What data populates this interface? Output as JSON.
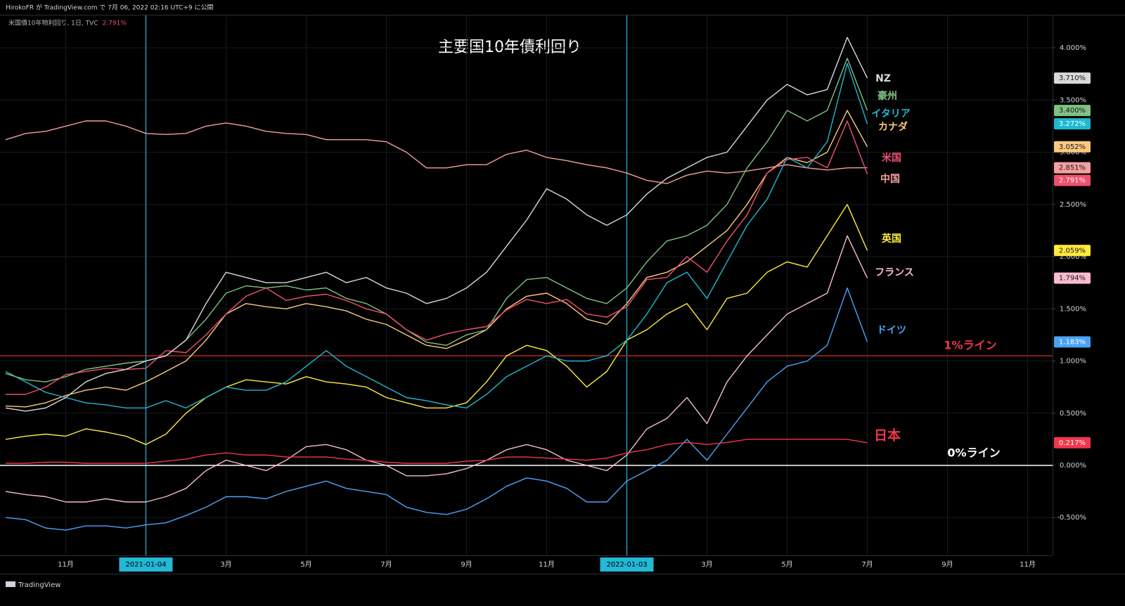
{
  "header": "HirokoFR が TradingView.com で 7月 06, 2022 02:16 UTC+9 に公開",
  "symbol": "米国債10年物利回り, 1日, TVC",
  "brand": "TradingView",
  "chart_data": {
    "type": "line",
    "title": "主要国10年債利回り",
    "categories": [
      null,
      null,
      null,
      "11月",
      null,
      null,
      null,
      "2021-01-04",
      null,
      null,
      null,
      "3月",
      null,
      null,
      null,
      "5月",
      null,
      null,
      null,
      "7月",
      null,
      null,
      null,
      "9月",
      null,
      null,
      null,
      "11月",
      null,
      null,
      null,
      "2022-01-03",
      null,
      null,
      null,
      "3月",
      null,
      null,
      null,
      "5月",
      null,
      null,
      null,
      "7月",
      null,
      null,
      null,
      "9月",
      null,
      null,
      null,
      "11月",
      null
    ],
    "x_highlights": [
      "2021-01-04",
      "2022-01-03"
    ],
    "highlight_color": "#22b8d6",
    "ylim": [
      -0.862,
      4.31
    ],
    "yticks": [
      {
        "value": -0.5,
        "label": "-0.500%"
      },
      {
        "value": 0,
        "label": "0.000%"
      },
      {
        "value": 0.5,
        "label": "0.500%"
      },
      {
        "value": 1,
        "label": "1.000%"
      },
      {
        "value": 1.5,
        "label": "1.500%"
      },
      {
        "value": 2,
        "label": "2.000%"
      },
      {
        "value": 2.5,
        "label": "2.500%"
      },
      {
        "value": 3,
        "label": "3.000%"
      },
      {
        "value": 3.5,
        "label": "3.500%"
      },
      {
        "value": 4,
        "label": "4.000%"
      }
    ],
    "grid": true,
    "hlines": [
      {
        "value": 1.05,
        "label": "1%ライン",
        "color": "#b3261e",
        "label_color": "#f2364c"
      },
      {
        "value": 0,
        "label": "0%ライン",
        "color": "#ffffff",
        "label_color": "#ffffff"
      }
    ],
    "series": [
      {
        "name": "中国",
        "color": "#f4a09c",
        "price_label": "2.851%",
        "values": [
          3.12,
          3.18,
          3.2,
          3.25,
          3.3,
          3.3,
          3.25,
          3.18,
          3.17,
          3.18,
          3.25,
          3.28,
          3.25,
          3.2,
          3.18,
          3.17,
          3.12,
          3.12,
          3.12,
          3.1,
          3.0,
          2.85,
          2.85,
          2.88,
          2.88,
          2.98,
          3.02,
          2.95,
          2.92,
          2.88,
          2.85,
          2.8,
          2.73,
          2.7,
          2.78,
          2.82,
          2.8,
          2.82,
          2.85,
          2.88,
          2.85,
          2.83,
          2.85,
          2.851,
          null,
          null,
          null,
          null,
          null,
          null,
          null,
          null,
          null
        ]
      },
      {
        "name": "ドイツ",
        "color": "#4ba3f5",
        "price_label": "1.183%",
        "values": [
          -0.5,
          -0.52,
          -0.6,
          -0.62,
          -0.58,
          -0.58,
          -0.6,
          -0.57,
          -0.55,
          -0.48,
          -0.4,
          -0.3,
          -0.3,
          -0.32,
          -0.25,
          -0.2,
          -0.15,
          -0.22,
          -0.25,
          -0.28,
          -0.4,
          -0.45,
          -0.47,
          -0.42,
          -0.32,
          -0.2,
          -0.12,
          -0.15,
          -0.22,
          -0.35,
          -0.35,
          -0.15,
          -0.05,
          0.05,
          0.25,
          0.05,
          0.3,
          0.55,
          0.8,
          0.95,
          1.0,
          1.15,
          1.7,
          1.183,
          null,
          null,
          null,
          null,
          null,
          null,
          null,
          null,
          null
        ]
      },
      {
        "name": "フランス",
        "color": "#f8bbd0",
        "price_label": "1.794%",
        "values": [
          -0.25,
          -0.28,
          -0.3,
          -0.35,
          -0.35,
          -0.32,
          -0.35,
          -0.35,
          -0.3,
          -0.22,
          -0.05,
          0.05,
          0.0,
          -0.05,
          0.05,
          0.18,
          0.2,
          0.15,
          0.05,
          0.0,
          -0.1,
          -0.1,
          -0.08,
          -0.03,
          0.05,
          0.15,
          0.2,
          0.15,
          0.05,
          0.0,
          -0.05,
          0.1,
          0.35,
          0.45,
          0.65,
          0.4,
          0.8,
          1.05,
          1.25,
          1.45,
          1.55,
          1.65,
          2.2,
          1.794,
          null,
          null,
          null,
          null,
          null,
          null,
          null,
          null,
          null
        ]
      },
      {
        "name": "英国",
        "color": "#ffeb3b",
        "price_label": "2.059%",
        "values": [
          0.25,
          0.28,
          0.3,
          0.28,
          0.35,
          0.32,
          0.28,
          0.2,
          0.3,
          0.5,
          0.65,
          0.75,
          0.82,
          0.8,
          0.78,
          0.85,
          0.8,
          0.78,
          0.75,
          0.65,
          0.6,
          0.55,
          0.55,
          0.6,
          0.8,
          1.05,
          1.15,
          1.1,
          0.95,
          0.75,
          0.9,
          1.2,
          1.3,
          1.45,
          1.55,
          1.3,
          1.6,
          1.65,
          1.85,
          1.95,
          1.9,
          2.2,
          2.5,
          2.059,
          null,
          null,
          null,
          null,
          null,
          null,
          null,
          null,
          null
        ]
      },
      {
        "name": "日本",
        "color": "#f2364c",
        "price_label": "0.217%",
        "values": [
          0.02,
          0.02,
          0.03,
          0.03,
          0.02,
          0.02,
          0.02,
          0.02,
          0.04,
          0.06,
          0.1,
          0.12,
          0.1,
          0.1,
          0.08,
          0.08,
          0.08,
          0.06,
          0.05,
          0.03,
          0.02,
          0.02,
          0.02,
          0.04,
          0.05,
          0.08,
          0.08,
          0.07,
          0.06,
          0.05,
          0.07,
          0.12,
          0.15,
          0.2,
          0.22,
          0.2,
          0.22,
          0.25,
          0.25,
          0.25,
          0.25,
          0.25,
          0.25,
          0.217,
          null,
          null,
          null,
          null,
          null,
          null,
          null,
          null,
          null
        ]
      },
      {
        "name": "カナダ",
        "color": "#ffc77d",
        "price_label": "3.052%",
        "values": [
          0.57,
          0.56,
          0.6,
          0.67,
          0.72,
          0.75,
          0.72,
          0.8,
          0.9,
          1.0,
          1.2,
          1.45,
          1.55,
          1.52,
          1.5,
          1.55,
          1.52,
          1.48,
          1.4,
          1.35,
          1.25,
          1.15,
          1.12,
          1.2,
          1.3,
          1.5,
          1.62,
          1.65,
          1.55,
          1.4,
          1.35,
          1.55,
          1.8,
          1.85,
          1.95,
          2.1,
          2.25,
          2.5,
          2.8,
          2.95,
          2.9,
          3.0,
          3.4,
          3.052,
          null,
          null,
          null,
          null,
          null,
          null,
          null,
          null,
          null
        ]
      },
      {
        "name": "イタリア",
        "color": "#1fb8d0",
        "price_label": "3.272%",
        "values": [
          0.9,
          0.8,
          0.7,
          0.65,
          0.6,
          0.58,
          0.55,
          0.55,
          0.62,
          0.55,
          0.65,
          0.75,
          0.72,
          0.72,
          0.8,
          0.95,
          1.1,
          0.95,
          0.85,
          0.75,
          0.65,
          0.62,
          0.58,
          0.55,
          0.68,
          0.85,
          0.95,
          1.05,
          1.0,
          1.0,
          1.05,
          1.2,
          1.45,
          1.75,
          1.85,
          1.6,
          1.95,
          2.3,
          2.55,
          2.95,
          2.85,
          3.1,
          3.85,
          3.272,
          null,
          null,
          null,
          null,
          null,
          null,
          null,
          null,
          null
        ]
      },
      {
        "name": "豪州",
        "color": "#7fc282",
        "price_label": "3.400%",
        "values": [
          0.88,
          0.82,
          0.8,
          0.85,
          0.92,
          0.95,
          0.98,
          1.0,
          1.05,
          1.2,
          1.4,
          1.65,
          1.72,
          1.7,
          1.72,
          1.68,
          1.7,
          1.6,
          1.55,
          1.45,
          1.3,
          1.18,
          1.15,
          1.25,
          1.3,
          1.6,
          1.78,
          1.8,
          1.7,
          1.6,
          1.55,
          1.7,
          1.95,
          2.15,
          2.2,
          2.3,
          2.5,
          2.85,
          3.1,
          3.4,
          3.3,
          3.4,
          3.9,
          3.4,
          null,
          null,
          null,
          null,
          null,
          null,
          null,
          null,
          null
        ]
      },
      {
        "name": "米国",
        "color": "#f0506e",
        "price_label": "2.791%",
        "values": [
          0.68,
          0.68,
          0.75,
          0.87,
          0.9,
          0.93,
          0.92,
          0.93,
          1.1,
          1.08,
          1.25,
          1.45,
          1.62,
          1.7,
          1.58,
          1.62,
          1.64,
          1.58,
          1.5,
          1.45,
          1.3,
          1.2,
          1.26,
          1.3,
          1.33,
          1.49,
          1.59,
          1.55,
          1.59,
          1.45,
          1.42,
          1.52,
          1.78,
          1.8,
          2.0,
          1.85,
          2.15,
          2.4,
          2.8,
          2.93,
          2.95,
          2.85,
          3.3,
          2.791,
          null,
          null,
          null,
          null,
          null,
          null,
          null,
          null,
          null
        ]
      },
      {
        "name": "NZ",
        "color": "#d9d9d9",
        "price_label": "3.710%",
        "values": [
          0.55,
          0.52,
          0.55,
          0.65,
          0.8,
          0.88,
          0.92,
          1.0,
          1.05,
          1.2,
          1.55,
          1.85,
          1.8,
          1.75,
          1.75,
          1.8,
          1.85,
          1.75,
          1.8,
          1.7,
          1.65,
          1.55,
          1.6,
          1.7,
          1.85,
          2.1,
          2.35,
          2.65,
          2.55,
          2.4,
          2.3,
          2.4,
          2.6,
          2.75,
          2.85,
          2.95,
          3.0,
          3.25,
          3.5,
          3.65,
          3.55,
          3.6,
          4.1,
          3.71,
          null,
          null,
          null,
          null,
          null,
          null,
          null,
          null,
          null
        ]
      }
    ]
  }
}
